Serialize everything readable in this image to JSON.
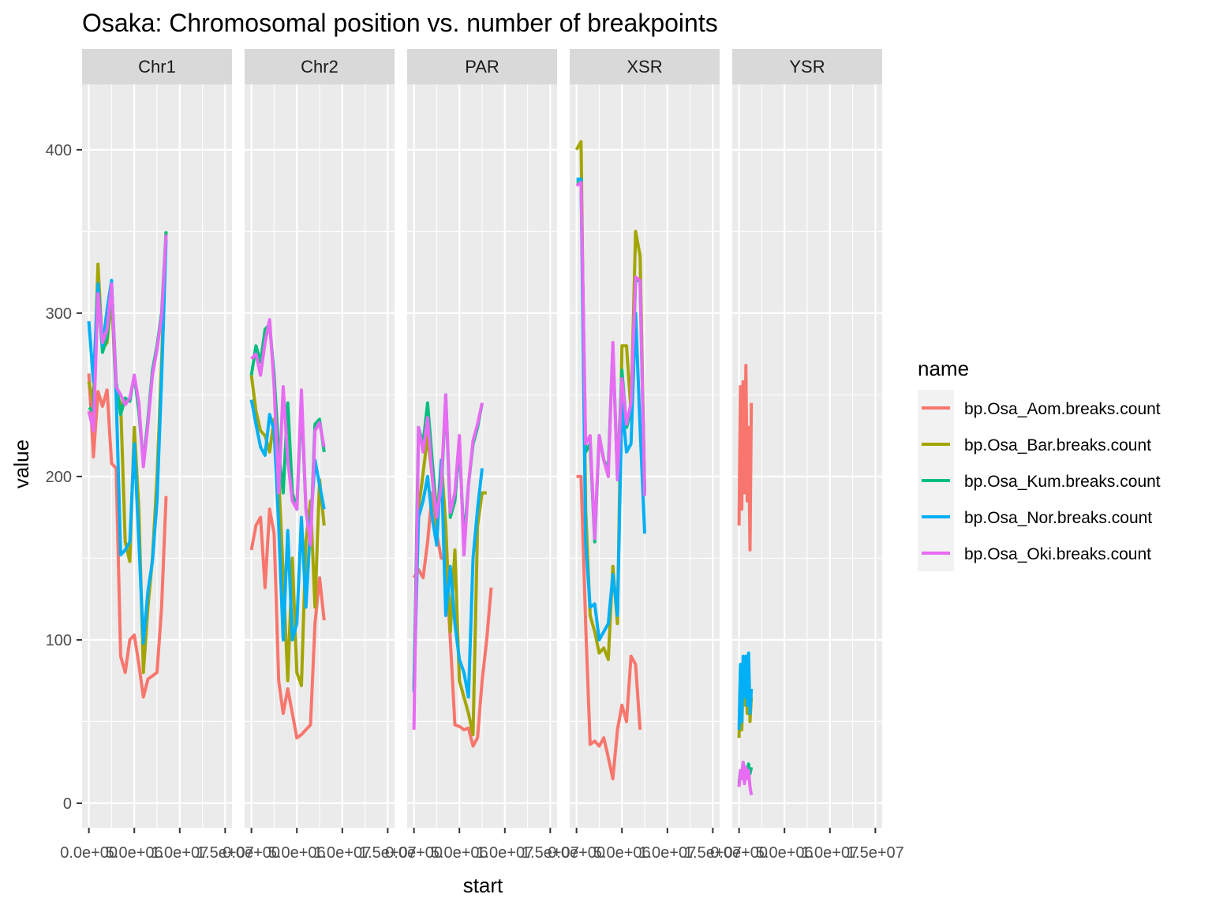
{
  "chart_data": {
    "type": "line",
    "title": "Osaka: Chromosomal position vs. number of breakpoints",
    "xlabel": "start",
    "ylabel": "value",
    "ylim": [
      -15,
      440
    ],
    "xlim": [
      -750000,
      15750000
    ],
    "y_ticks": [
      0,
      100,
      200,
      300,
      400
    ],
    "x_ticks": [
      0,
      5000000,
      10000000,
      15000000
    ],
    "x_tick_labels": [
      "0.0e+00",
      "5.0e+06",
      "1.0e+07",
      "1.5e+07"
    ],
    "grid": true,
    "facets": [
      "Chr1",
      "Chr2",
      "PAR",
      "XSR",
      "YSR"
    ],
    "legend": {
      "title": "name",
      "position": "right",
      "entries": [
        "bp.Osa_Aom.breaks.count",
        "bp.Osa_Bar.breaks.count",
        "bp.Osa_Kum.breaks.count",
        "bp.Osa_Nor.breaks.count",
        "bp.Osa_Oki.breaks.count"
      ]
    },
    "colors": [
      "#F8766D",
      "#A3A500",
      "#00BF7D",
      "#00B0F6",
      "#E76BF3"
    ],
    "panels": [
      {
        "facet": "Chr1",
        "x": [
          0,
          500000,
          1000000,
          1500000,
          2000000,
          2500000,
          3000000,
          3500000,
          4000000,
          4500000,
          5000000,
          5500000,
          6000000,
          6500000,
          7000000,
          7500000,
          8000000,
          8500000,
          9000000,
          9500000,
          10000000,
          10500000,
          11000000,
          11500000
        ],
        "series": [
          {
            "name": "bp.Osa_Aom.breaks.count",
            "values": [
              263,
              212,
              252,
              243,
              253,
              208,
              205,
              90,
              80,
              100,
              103,
              85,
              65,
              76,
              78,
              80,
              120,
              188,
              null,
              null,
              null,
              null,
              null,
              null
            ]
          },
          {
            "name": "bp.Osa_Bar.breaks.count",
            "values": [
              258,
              245,
              330,
              278,
              282,
              310,
              250,
              245,
              160,
              148,
              230,
              180,
              80,
              120,
              150,
              200,
              270,
              350,
              null,
              null,
              null,
              null,
              null,
              null
            ]
          },
          {
            "name": "bp.Osa_Kum.breaks.count",
            "values": [
              242,
              240,
              315,
              276,
              285,
              318,
              258,
              238,
              248,
              246,
              262,
              240,
              208,
              235,
              265,
              280,
              300,
              350,
              null,
              null,
              null,
              null,
              null,
              null
            ]
          },
          {
            "name": "bp.Osa_Nor.breaks.count",
            "values": [
              295,
              258,
              318,
              280,
              302,
              320,
              250,
              152,
              155,
              160,
              220,
              160,
              98,
              130,
              148,
              185,
              260,
              345,
              null,
              null,
              null,
              null,
              null,
              null
            ]
          },
          {
            "name": "bp.Osa_Oki.breaks.count",
            "values": [
              240,
              228,
              312,
              282,
              290,
              318,
              255,
              250,
              244,
              248,
              262,
              245,
              206,
              232,
              262,
              278,
              298,
              348,
              null,
              null,
              null,
              null,
              null,
              null
            ]
          }
        ]
      },
      {
        "facet": "Chr2",
        "x": [
          0,
          500000,
          1000000,
          1500000,
          2000000,
          2500000,
          3000000,
          3500000,
          4000000,
          4500000,
          5000000,
          5500000,
          6000000,
          6500000,
          7000000,
          7500000,
          8000000,
          8500000,
          9000000,
          9500000,
          10000000,
          10500000,
          11000000,
          11500000,
          12000000,
          12500000,
          13000000,
          13500000,
          14000000,
          14500000,
          15000000
        ],
        "series": [
          {
            "name": "bp.Osa_Aom.breaks.count",
            "values": [
              155,
              170,
              175,
              132,
              180,
              165,
              75,
              55,
              70,
              55,
              40,
              42,
              45,
              48,
              110,
              138,
              112,
              null,
              null,
              null,
              null,
              null,
              null,
              null,
              null,
              null,
              null,
              null,
              null,
              null,
              null
            ]
          },
          {
            "name": "bp.Osa_Bar.breaks.count",
            "values": [
              262,
              240,
              228,
              225,
              215,
              235,
              200,
              140,
              75,
              150,
              80,
              72,
              160,
              185,
              120,
              198,
              170,
              null,
              null,
              null,
              null,
              null,
              null,
              null,
              null,
              null,
              null,
              null,
              null,
              null,
              null
            ]
          },
          {
            "name": "bp.Osa_Kum.breaks.count",
            "values": [
              262,
              280,
              270,
              290,
              293,
              262,
              215,
              190,
              245,
              190,
              180,
              248,
              180,
              160,
              232,
              235,
              215,
              null,
              null,
              null,
              null,
              null,
              null,
              null,
              null,
              null,
              null,
              null,
              null,
              null,
              null
            ]
          },
          {
            "name": "bp.Osa_Nor.breaks.count",
            "values": [
              247,
              232,
              218,
              213,
              238,
              228,
              170,
              100,
              167,
              100,
              110,
              175,
              120,
              170,
              210,
              195,
              180,
              null,
              null,
              null,
              null,
              null,
              null,
              null,
              null,
              null,
              null,
              null,
              null,
              null,
              null
            ]
          },
          {
            "name": "bp.Osa_Oki.breaks.count",
            "values": [
              272,
              275,
              262,
              282,
              296,
              255,
              190,
              255,
              210,
              185,
              180,
              253,
              180,
              158,
              228,
              233,
              218,
              null,
              null,
              null,
              null,
              null,
              null,
              null,
              null,
              null,
              null,
              null,
              null,
              null,
              null
            ]
          }
        ]
      },
      {
        "facet": "PAR",
        "x": [
          0,
          500000,
          1000000,
          1500000,
          2000000,
          2500000,
          3000000,
          3500000,
          4000000,
          4500000,
          5000000,
          5500000,
          6000000,
          6500000,
          7000000,
          7500000,
          8000000,
          8500000,
          9000000,
          9500000,
          10000000,
          10500000,
          11000000,
          11500000,
          12000000,
          12500000,
          13000000,
          13500000,
          14000000,
          14500000,
          15000000
        ],
        "series": [
          {
            "name": "bp.Osa_Aom.breaks.count",
            "values": [
              138,
              143,
              138,
              160,
              190,
              165,
              150,
              150,
              100,
              48,
              47,
              45,
              46,
              35,
              40,
              75,
              100,
              132,
              null,
              null,
              null,
              null,
              null,
              null,
              null,
              null,
              null,
              null,
              null,
              null,
              null
            ]
          },
          {
            "name": "bp.Osa_Bar.breaks.count",
            "values": [
              70,
              180,
              202,
              225,
              200,
              170,
              210,
              170,
              105,
              155,
              75,
              65,
              55,
              42,
              170,
              190,
              190,
              null,
              null,
              null,
              null,
              null,
              null,
              null,
              null,
              null,
              null,
              null,
              null,
              null,
              null
            ]
          },
          {
            "name": "bp.Osa_Kum.breaks.count",
            "values": [
              70,
              230,
              220,
              245,
              210,
              178,
              190,
              250,
              175,
              185,
              220,
              160,
              195,
              220,
              230,
              245,
              null,
              null,
              null,
              null,
              null,
              null,
              null,
              null,
              null,
              null,
              null,
              null,
              null,
              null,
              null
            ]
          },
          {
            "name": "bp.Osa_Nor.breaks.count",
            "values": [
              68,
              175,
              185,
              200,
              175,
              158,
              210,
              115,
              145,
              110,
              88,
              80,
              65,
              150,
              180,
              205,
              null,
              null,
              null,
              null,
              null,
              null,
              null,
              null,
              null,
              null,
              null,
              null,
              null,
              null,
              null
            ]
          },
          {
            "name": "bp.Osa_Oki.breaks.count",
            "values": [
              45,
              230,
              215,
              236,
              200,
              175,
              195,
              250,
              178,
              190,
              225,
              152,
              195,
              222,
              232,
              245,
              null,
              null,
              null,
              null,
              null,
              null,
              null,
              null,
              null,
              null,
              null,
              null,
              null,
              null,
              null
            ]
          }
        ]
      },
      {
        "facet": "XSR",
        "x": [
          0,
          500000,
          1000000,
          1500000,
          2000000,
          2500000,
          3000000,
          3500000,
          4000000,
          4500000,
          5000000,
          5500000,
          6000000,
          6500000,
          7000000,
          7500000,
          8000000,
          8500000,
          9000000,
          9500000,
          10000000,
          10500000,
          11000000,
          11500000
        ],
        "series": [
          {
            "name": "bp.Osa_Aom.breaks.count",
            "values": [
              200,
              200,
              110,
              36,
              38,
              35,
              40,
              28,
              15,
              45,
              60,
              50,
              90,
              85,
              45,
              null,
              null,
              null,
              null,
              null,
              null,
              null,
              null,
              null
            ]
          },
          {
            "name": "bp.Osa_Bar.breaks.count",
            "values": [
              400,
              405,
              180,
              115,
              105,
              92,
              95,
              88,
              145,
              110,
              280,
              280,
              240,
              350,
              335,
              190,
              null,
              null,
              null,
              null,
              null,
              null,
              null,
              null
            ]
          },
          {
            "name": "bp.Osa_Kum.breaks.count",
            "values": [
              380,
              380,
              215,
              220,
              160,
              225,
              210,
              205,
              280,
              200,
              265,
              230,
              240,
              320,
              320,
              190,
              null,
              null,
              null,
              null,
              null,
              null,
              null,
              null
            ]
          },
          {
            "name": "bp.Osa_Nor.breaks.count",
            "values": [
              382,
              382,
              160,
              120,
              122,
              100,
              105,
              110,
              140,
              115,
              245,
              215,
              220,
              300,
              230,
              165,
              null,
              null,
              null,
              null,
              null,
              null,
              null,
              null
            ]
          },
          {
            "name": "bp.Osa_Oki.breaks.count",
            "values": [
              378,
              380,
              220,
              225,
              162,
              225,
              210,
              200,
              282,
              198,
              260,
              232,
              245,
              322,
              320,
              188,
              null,
              null,
              null,
              null,
              null,
              null,
              null,
              null
            ]
          }
        ]
      },
      {
        "facet": "YSR",
        "x": [
          0,
          150000,
          300000,
          450000,
          600000,
          750000,
          900000,
          1050000,
          1200000,
          1350000,
          1500000,
          1650000,
          1800000,
          1950000,
          2100000
        ],
        "series": [
          {
            "name": "bp.Osa_Aom.breaks.count",
            "values": [
              170,
              255,
              180,
              258,
              190,
              268,
              185,
              230,
              155,
              245,
              null,
              null,
              null,
              null,
              null
            ]
          },
          {
            "name": "bp.Osa_Bar.breaks.count",
            "values": [
              40,
              70,
              45,
              80,
              60,
              85,
              55,
              80,
              50,
              65,
              null,
              null,
              null,
              null,
              null
            ]
          },
          {
            "name": "bp.Osa_Kum.breaks.count",
            "values": [
              12,
              20,
              15,
              25,
              18,
              22,
              20,
              24,
              18,
              22,
              null,
              null,
              null,
              null,
              null
            ]
          },
          {
            "name": "bp.Osa_Nor.breaks.count",
            "values": [
              45,
              85,
              50,
              90,
              65,
              90,
              60,
              92,
              55,
              70,
              null,
              null,
              null,
              null,
              null
            ]
          },
          {
            "name": "bp.Osa_Oki.breaks.count",
            "values": [
              10,
              20,
              15,
              25,
              12,
              22,
              15,
              20,
              10,
              5,
              null,
              null,
              null,
              null,
              null
            ]
          }
        ]
      }
    ]
  }
}
